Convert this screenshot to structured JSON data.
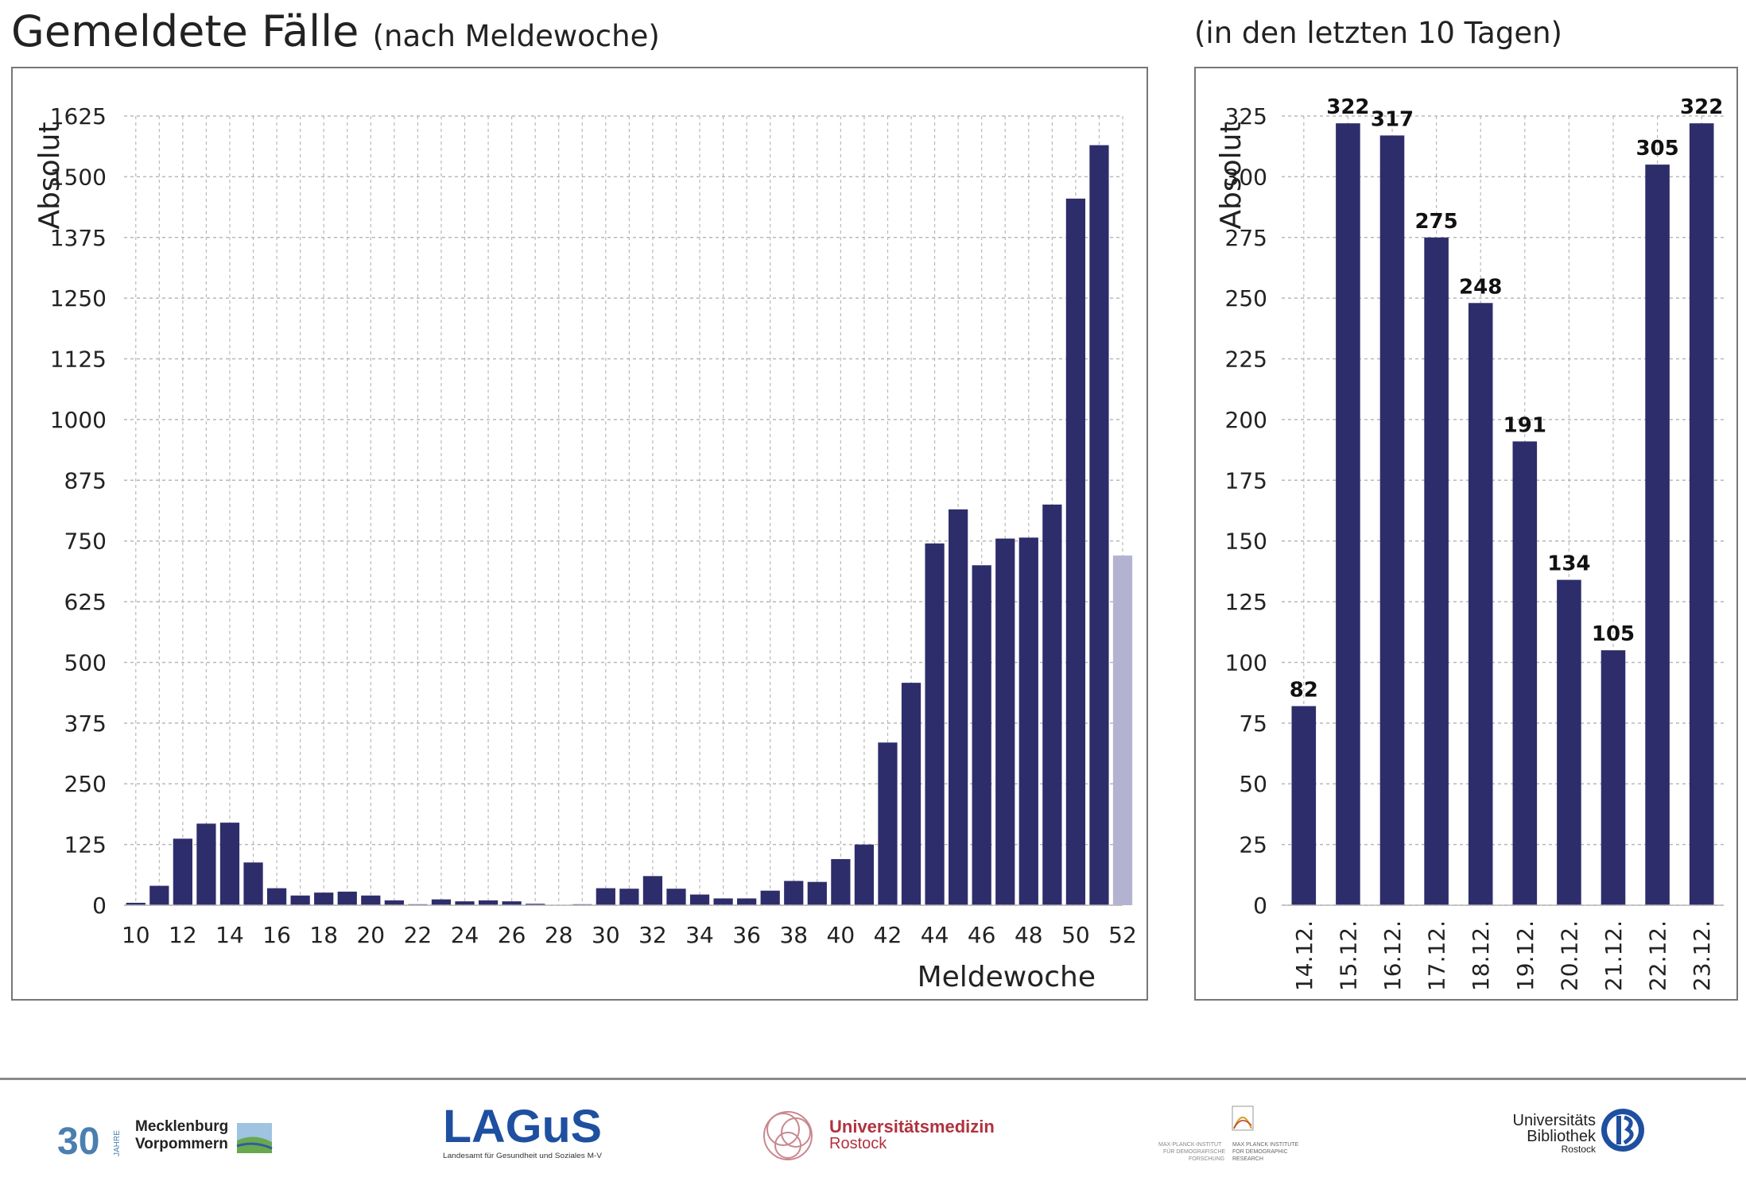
{
  "header": {
    "title": "Gemeldete Fälle",
    "subtitle": "(nach Meldewoche)",
    "right_title": "(in den letzten 10 Tagen)"
  },
  "colors": {
    "bar": "#2e2d6b",
    "bar_incomplete": "#b3b3d1",
    "grid": "#b8b8b8",
    "panel_border": "#777777"
  },
  "chart_data": [
    {
      "type": "bar",
      "title": "Gemeldete Fälle (nach Meldewoche)",
      "xlabel": "Meldewoche",
      "ylabel": "Absolut",
      "ylim": [
        0,
        1625
      ],
      "yticks": [
        0,
        125,
        250,
        375,
        500,
        625,
        750,
        875,
        1000,
        1125,
        1250,
        1375,
        1500,
        1625
      ],
      "xticks": [
        10,
        12,
        14,
        16,
        18,
        20,
        22,
        24,
        26,
        28,
        30,
        32,
        34,
        36,
        38,
        40,
        42,
        44,
        46,
        48,
        50,
        52
      ],
      "grid": true,
      "categories": [
        10,
        11,
        12,
        13,
        14,
        15,
        16,
        17,
        18,
        19,
        20,
        21,
        22,
        23,
        24,
        25,
        26,
        27,
        28,
        29,
        30,
        31,
        32,
        33,
        34,
        35,
        36,
        37,
        38,
        39,
        40,
        41,
        42,
        43,
        44,
        45,
        46,
        47,
        48,
        49,
        50,
        51,
        52
      ],
      "values": [
        5,
        40,
        137,
        168,
        170,
        88,
        35,
        20,
        26,
        28,
        20,
        10,
        2,
        12,
        8,
        10,
        8,
        3,
        0,
        2,
        35,
        34,
        60,
        34,
        22,
        14,
        14,
        30,
        50,
        48,
        95,
        125,
        335,
        458,
        745,
        815,
        700,
        755,
        757,
        825,
        1455,
        1565,
        720
      ],
      "incomplete_last": true
    },
    {
      "type": "bar",
      "title": "(in den letzten 10 Tagen)",
      "ylabel": "Absolut",
      "ylim": [
        0,
        325
      ],
      "yticks": [
        0,
        25,
        50,
        75,
        100,
        125,
        150,
        175,
        200,
        225,
        250,
        275,
        300,
        325
      ],
      "grid": true,
      "categories": [
        "14.12.",
        "15.12.",
        "16.12.",
        "17.12.",
        "18.12.",
        "19.12.",
        "20.12.",
        "21.12.",
        "22.12.",
        "23.12."
      ],
      "values": [
        82,
        322,
        317,
        275,
        248,
        191,
        134,
        105,
        305,
        322
      ],
      "data_labels": true
    }
  ],
  "footer": {
    "logos": {
      "mv_number": "30",
      "mv_jahre": "JAHRE",
      "mv_line1": "Mecklenburg",
      "mv_line2": "Vorpommern",
      "lagus_name": "LAGuS",
      "lagus_sub": "Landesamt für Gesundheit und Soziales M-V",
      "uni_line1": "Universitätsmedizin",
      "uni_line2": "Rostock",
      "mpi_left1": "MAX-PLANCK-INSTITUT",
      "mpi_left2": "FÜR DEMOGRAFISCHE",
      "mpi_left3": "FORSCHUNG",
      "mpi_right1": "MAX PLANCK INSTITUTE",
      "mpi_right2": "FOR DEMOGRAPHIC",
      "mpi_right3": "RESEARCH",
      "ub_line1": "Universitäts",
      "ub_line2": "Bibliothek",
      "ub_line3": "Rostock"
    }
  }
}
